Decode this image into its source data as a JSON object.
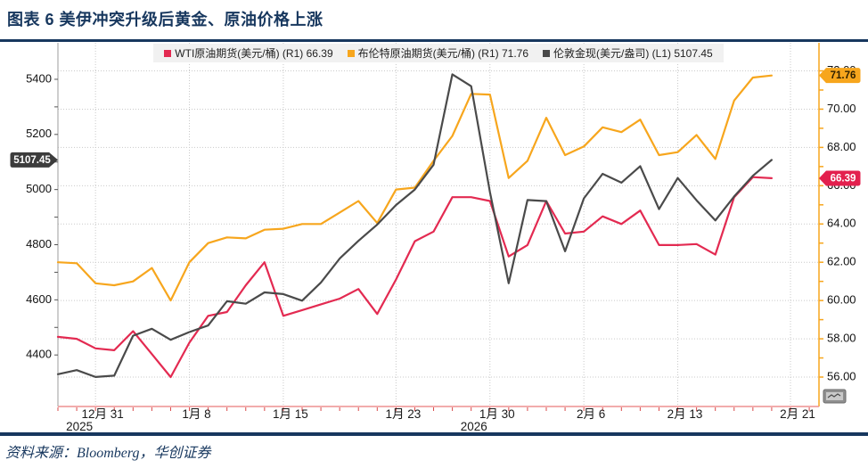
{
  "header": {
    "title": "图表 6  美伊冲突升级后黄金、原油价格上涨"
  },
  "footer": {
    "source": "资料来源：Bloomberg，华创证券"
  },
  "colors": {
    "navy": "#17375E",
    "wti_red": "#E32A51",
    "brent_orange": "#F7A61D",
    "gold_dark": "#4A4A4A",
    "grid": "#C9C9C9",
    "x_axis_line": "#EE9090",
    "x_axis_tick": "#D84848",
    "left_axis_line": "#9C9C9C"
  },
  "chart_data": {
    "type": "line",
    "title": "美伊冲突升级后黄金、原油价格上涨",
    "x_total_slots": 40,
    "x_ticks": [
      {
        "index": 2,
        "label": "12月 31",
        "year": "2025"
      },
      {
        "index": 7,
        "label": "1月 8"
      },
      {
        "index": 12,
        "label": "1月 15"
      },
      {
        "index": 18,
        "label": "1月 23"
      },
      {
        "index": 23,
        "label": "1月 30",
        "year": "2026"
      },
      {
        "index": 28,
        "label": "2月 6"
      },
      {
        "index": 33,
        "label": "2月 13"
      },
      {
        "index": 39,
        "label": "2月 21"
      }
    ],
    "left_axis": {
      "min": 4400,
      "max": 5400,
      "tick_values": [
        5400,
        5200,
        5000,
        4800,
        4600,
        4400
      ],
      "tick_labels": [
        "5400",
        "5200",
        "5000",
        "4800",
        "4600",
        "4400"
      ],
      "minor_step": 100
    },
    "right_axis": {
      "min": 56,
      "max": 72,
      "tick_values": [
        72,
        70,
        68,
        66,
        64,
        62,
        60,
        58,
        56
      ],
      "tick_labels": [
        "72.00",
        "70.00",
        "68.00",
        "66.00",
        "64.00",
        "62.00",
        "60.00",
        "58.00",
        "56.00"
      ],
      "minor_step": 1
    },
    "series": [
      {
        "name": "布伦特原油期货",
        "legend_label": "布伦特原油期货(美元/桶) (R1) 71.76",
        "axis": "R",
        "color": "#F7A61D",
        "last_value": 71.76,
        "values": [
          62.0,
          61.95,
          60.9,
          60.8,
          61.0,
          61.7,
          60.0,
          62.0,
          63.0,
          63.3,
          63.25,
          63.7,
          63.75,
          64.0,
          64.0,
          64.6,
          65.2,
          64.05,
          65.8,
          65.9,
          67.3,
          68.6,
          70.8,
          70.76,
          66.4,
          67.3,
          69.55,
          67.6,
          68.05,
          69.05,
          68.8,
          69.45,
          67.6,
          67.75,
          68.65,
          67.4,
          70.45,
          71.65,
          71.76
        ]
      },
      {
        "name": "WTI原油期货",
        "legend_label": "WTI原油期货(美元/桶) (R1) 66.39",
        "axis": "R",
        "color": "#E32A51",
        "last_value": 66.39,
        "values": [
          58.1,
          58.0,
          57.5,
          57.4,
          58.4,
          57.2,
          56.0,
          57.8,
          59.2,
          59.4,
          60.8,
          62.0,
          59.2,
          59.5,
          59.8,
          60.1,
          60.6,
          59.3,
          61.1,
          63.1,
          63.6,
          65.4,
          65.4,
          65.2,
          62.3,
          62.9,
          65.2,
          63.5,
          63.6,
          64.4,
          64.0,
          64.7,
          62.9,
          62.9,
          62.95,
          62.4,
          65.4,
          66.45,
          66.39
        ]
      },
      {
        "name": "伦敦金现",
        "legend_label": "伦敦金现(美元/盎司) (L1) 5107.45",
        "axis": "L",
        "color": "#4A4A4A",
        "last_value": 5107.45,
        "values": [
          4330,
          4345,
          4320,
          4325,
          4470,
          4495,
          4455,
          4483,
          4507,
          4595,
          4586,
          4627,
          4621,
          4597,
          4663,
          4750,
          4814,
          4873,
          4944,
          5000,
          5090,
          5418,
          5375,
          4990,
          4660,
          4962,
          4958,
          4776,
          4968,
          5057,
          5025,
          5085,
          4929,
          5042,
          4961,
          4888,
          4975,
          5050,
          5107.45
        ]
      }
    ],
    "legend_order": [
      1,
      0,
      2
    ],
    "badges": [
      {
        "text": "5107.45",
        "axis": "L",
        "value": 5107.45,
        "side": "left",
        "bg": "#3C3C3C",
        "fg": "#FFFFFF"
      },
      {
        "text": "71.76",
        "axis": "R",
        "value": 71.76,
        "side": "right",
        "bg": "#F7A61D",
        "fg": "#2E2000"
      },
      {
        "text": "66.39",
        "axis": "R",
        "value": 66.39,
        "side": "right",
        "bg": "#E3204E",
        "fg": "#FFFFFF"
      }
    ]
  }
}
